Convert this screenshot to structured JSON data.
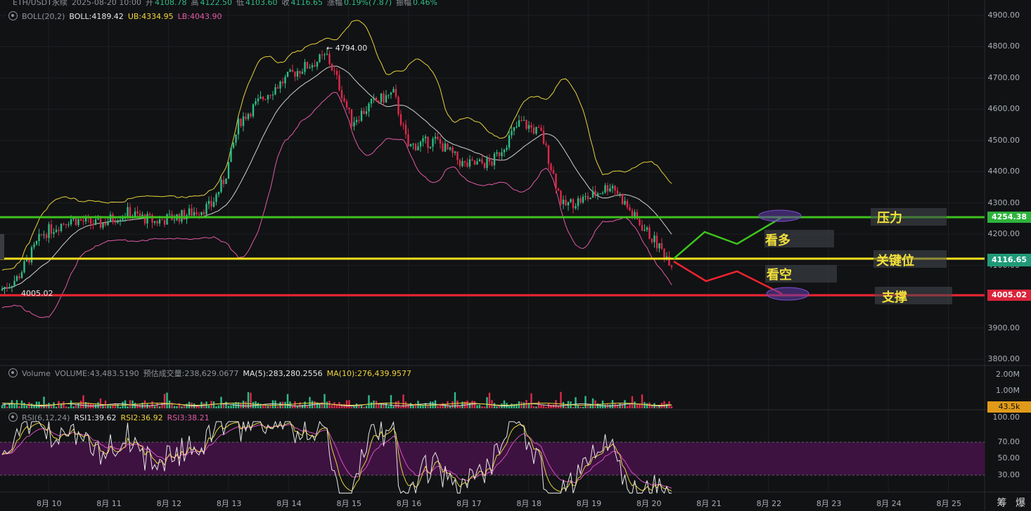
{
  "header": {
    "symbol": "ETH/USDT永续",
    "datetime": "2025-08-20 10:00",
    "open_label": "开",
    "open": "4108.78",
    "high_label": "高",
    "high": "4122.50",
    "low_label": "低",
    "low": "4103.60",
    "close_label": "收",
    "close": "4116.65",
    "change_label": "涨幅",
    "change": "0.19%(7.87)",
    "amp_label": "振幅",
    "amp": "0.46%"
  },
  "boll": {
    "label": "BOLL(20,2)",
    "mid": "BOLL:4189.42",
    "ub": "UB:4334.95",
    "lb": "LB:4043.90"
  },
  "volume": {
    "label": "Volume",
    "value": "VOLUME:43,483.5190",
    "forecast": "预估成交量:238,629.0677",
    "ma5": "MA(5):283,280.2556",
    "ma10": "MA(10):276,439.9577",
    "axis": [
      "2.00M",
      "1.00M"
    ],
    "current": "43.5k"
  },
  "rsi": {
    "label": "RSI(6,12,24)",
    "rsi1": "RSI1:39.62",
    "rsi2": "RSI2:36.92",
    "rsi3": "RSI3:38.21",
    "axis": [
      "100.00",
      "70.00",
      "50.00",
      "30.00"
    ]
  },
  "price_axis": [
    "4900.00",
    "4800.00",
    "4700.00",
    "4600.00",
    "4500.00",
    "4400.00",
    "4300.00",
    "4200.00",
    "4100.00",
    "4000.00",
    "3900.00",
    "3800.00"
  ],
  "price_tags": {
    "resistance": "4254.38",
    "current": "4116.65",
    "support": "4005.02"
  },
  "markers": {
    "high": "4794.00",
    "low": "4005.02"
  },
  "annotations": {
    "resistance": "压力",
    "bullish": "看多",
    "key_level": "关键位",
    "bearish": "看空",
    "support": "支撑"
  },
  "time_axis": [
    "8月 10",
    "8月 11",
    "8月 12",
    "8月 13",
    "8月 14",
    "8月 15",
    "8月 16",
    "8月 17",
    "8月 18",
    "8月 19",
    "8月 20",
    "8月 21",
    "8月 22",
    "8月 23",
    "8月 24",
    "8月 25"
  ],
  "brand": "筹 爆",
  "colors": {
    "up": "#2ebd85",
    "down": "#e0294a",
    "boll_band": "#e6d23c",
    "boll_mid": "#d0d0d0",
    "boll_lb": "#e05aa6",
    "resistance_line": "#3ec21e",
    "key_line": "#f3e01c",
    "support_line": "#ee2430",
    "rsi_zone": "#3d1240"
  }
}
